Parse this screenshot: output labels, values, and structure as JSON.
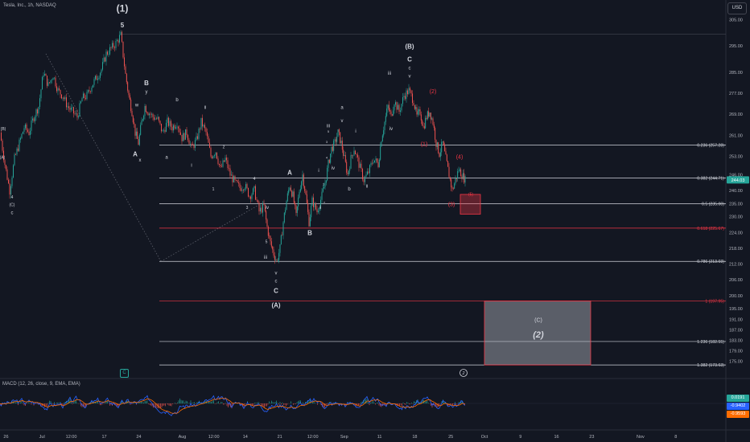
{
  "header": {
    "title": "Tesla, Inc., 1h, NASDAQ",
    "currency": "USD"
  },
  "macd": {
    "label": "MACD (12, 26, close, 9, EMA, EMA)",
    "values": [
      "0.0191",
      "-0.9402",
      "-0.9593"
    ]
  },
  "colors": {
    "background": "#131722",
    "up": "#26a69a",
    "down": "#ef5350",
    "fib_line": "#d1d4dc",
    "fib_red": "#f23645",
    "macd": "#2962ff",
    "signal": "#ff6d00",
    "box_fill": "#b2b5be"
  },
  "chart_data": {
    "type": "candlestick",
    "symbol": "Tesla, Inc., 1h, NASDAQ",
    "y_axis": {
      "range": [
        170,
        310
      ],
      "ticks": [
        305,
        295,
        285,
        277,
        269,
        261,
        253,
        246,
        240,
        235,
        230,
        224,
        218,
        212,
        206,
        200,
        195,
        191,
        187,
        183,
        179,
        175
      ]
    },
    "x_axis": {
      "ticks": [
        {
          "label": "26",
          "x_frac": 0.008
        },
        {
          "label": "Jul",
          "x_frac": 0.056
        },
        {
          "label": "12:00",
          "x_frac": 0.095
        },
        {
          "label": "17",
          "x_frac": 0.139
        },
        {
          "label": "24",
          "x_frac": 0.185
        },
        {
          "label": "Aug",
          "x_frac": 0.243
        },
        {
          "label": "12:00",
          "x_frac": 0.285
        },
        {
          "label": "14",
          "x_frac": 0.327
        },
        {
          "label": "21",
          "x_frac": 0.373
        },
        {
          "label": "12:00",
          "x_frac": 0.417
        },
        {
          "label": "Sep",
          "x_frac": 0.459
        },
        {
          "label": "11",
          "x_frac": 0.506
        },
        {
          "label": "18",
          "x_frac": 0.553
        },
        {
          "label": "25",
          "x_frac": 0.601
        },
        {
          "label": "Oct",
          "x_frac": 0.646
        },
        {
          "label": "9",
          "x_frac": 0.694
        },
        {
          "label": "16",
          "x_frac": 0.742
        },
        {
          "label": "23",
          "x_frac": 0.789
        },
        {
          "label": "Nov",
          "x_frac": 0.854
        },
        {
          "label": "8",
          "x_frac": 0.901
        }
      ]
    },
    "price_path": [
      [
        0,
        262
      ],
      [
        6,
        250
      ],
      [
        12,
        240
      ],
      [
        18,
        252
      ],
      [
        24,
        258
      ],
      [
        30,
        264
      ],
      [
        36,
        262
      ],
      [
        42,
        268
      ],
      [
        48,
        272
      ],
      [
        54,
        285
      ],
      [
        60,
        280
      ],
      [
        66,
        284
      ],
      [
        72,
        278
      ],
      [
        78,
        276
      ],
      [
        84,
        272
      ],
      [
        90,
        270
      ],
      [
        96,
        268
      ],
      [
        102,
        275
      ],
      [
        108,
        276
      ],
      [
        114,
        280
      ],
      [
        120,
        283
      ],
      [
        126,
        286
      ],
      [
        132,
        292
      ],
      [
        138,
        294
      ],
      [
        144,
        296
      ],
      [
        150,
        299
      ],
      [
        156,
        284
      ],
      [
        160,
        276
      ],
      [
        164,
        270
      ],
      [
        168,
        262
      ],
      [
        172,
        258
      ],
      [
        176,
        266
      ],
      [
        180,
        272
      ],
      [
        184,
        270
      ],
      [
        190,
        268
      ],
      [
        196,
        267
      ],
      [
        202,
        262
      ],
      [
        208,
        266
      ],
      [
        214,
        264
      ],
      [
        220,
        266
      ],
      [
        226,
        260
      ],
      [
        232,
        262
      ],
      [
        238,
        256
      ],
      [
        244,
        259
      ],
      [
        250,
        266
      ],
      [
        256,
        262
      ],
      [
        262,
        253
      ],
      [
        268,
        255
      ],
      [
        274,
        248
      ],
      [
        280,
        252
      ],
      [
        286,
        246
      ],
      [
        292,
        243
      ],
      [
        298,
        241
      ],
      [
        304,
        242
      ],
      [
        310,
        238
      ],
      [
        316,
        240
      ],
      [
        322,
        232
      ],
      [
        328,
        234
      ],
      [
        332,
        226
      ],
      [
        336,
        220
      ],
      [
        340,
        216
      ],
      [
        344,
        213
      ],
      [
        348,
        218
      ],
      [
        352,
        228
      ],
      [
        356,
        236
      ],
      [
        360,
        242
      ],
      [
        364,
        238
      ],
      [
        368,
        230
      ],
      [
        372,
        240
      ],
      [
        376,
        246
      ],
      [
        380,
        238
      ],
      [
        384,
        228
      ],
      [
        388,
        236
      ],
      [
        394,
        232
      ],
      [
        400,
        238
      ],
      [
        404,
        243
      ],
      [
        408,
        250
      ],
      [
        412,
        256
      ],
      [
        416,
        258
      ],
      [
        420,
        262
      ],
      [
        424,
        258
      ],
      [
        428,
        252
      ],
      [
        432,
        246
      ],
      [
        436,
        252
      ],
      [
        440,
        256
      ],
      [
        446,
        250
      ],
      [
        452,
        244
      ],
      [
        458,
        247
      ],
      [
        464,
        252
      ],
      [
        470,
        250
      ],
      [
        474,
        260
      ],
      [
        478,
        266
      ],
      [
        482,
        272
      ],
      [
        486,
        268
      ],
      [
        490,
        274
      ],
      [
        496,
        270
      ],
      [
        502,
        276
      ],
      [
        508,
        278
      ],
      [
        514,
        274
      ],
      [
        518,
        268
      ],
      [
        522,
        270
      ],
      [
        526,
        264
      ],
      [
        530,
        268
      ],
      [
        534,
        270
      ],
      [
        538,
        266
      ],
      [
        542,
        258
      ],
      [
        546,
        254
      ],
      [
        550,
        258
      ],
      [
        554,
        252
      ],
      [
        558,
        246
      ],
      [
        562,
        240
      ],
      [
        566,
        244
      ],
      [
        570,
        248
      ],
      [
        574,
        246
      ],
      [
        578,
        244
      ]
    ],
    "fib_levels": [
      {
        "label": "0.236 (257.28)",
        "value": 257.28,
        "color": "white"
      },
      {
        "label": "0.382 (244.71)",
        "value": 244.71,
        "color": "white"
      },
      {
        "label": "0.5 (235.00)",
        "value": 235.0,
        "color": "white"
      },
      {
        "label": "0.618 (225.67)",
        "value": 225.67,
        "color": "red"
      },
      {
        "label": "0.786 (213.03)",
        "value": 213.03,
        "color": "white"
      },
      {
        "label": "1 (197.95)",
        "value": 197.95,
        "color": "red"
      },
      {
        "label": "1.236 (182.55)",
        "value": 182.55,
        "color": "white"
      },
      {
        "label": "1.382 (173.63)",
        "value": 173.63,
        "color": "white"
      }
    ],
    "current_price": {
      "label": "244.03",
      "value": 244.03
    },
    "wave_labels": [
      {
        "text": "(1)",
        "x": 152,
        "y": 308,
        "color": "white",
        "size": 12
      },
      {
        "text": "5",
        "x": 152,
        "y": 302,
        "color": "white",
        "size": 8
      },
      {
        "text": "(B)",
        "x": 4,
        "y": 263,
        "color": "white",
        "size": 5
      },
      {
        "text": "(A)",
        "x": 3,
        "y": 252,
        "color": "white",
        "size": 5
      },
      {
        "text": "4",
        "x": 15,
        "y": 237,
        "color": "white",
        "size": 5
      },
      {
        "text": "(C)",
        "x": 15,
        "y": 234,
        "color": "white",
        "size": 5
      },
      {
        "text": "c",
        "x": 15,
        "y": 231,
        "color": "white",
        "size": 6
      },
      {
        "text": "B",
        "x": 182,
        "y": 280,
        "color": "white",
        "size": 8
      },
      {
        "text": "y",
        "x": 182,
        "y": 277,
        "color": "white",
        "size": 6
      },
      {
        "text": "w",
        "x": 170,
        "y": 272,
        "color": "white",
        "size": 6
      },
      {
        "text": "A",
        "x": 168,
        "y": 253,
        "color": "white",
        "size": 8
      },
      {
        "text": "x",
        "x": 174,
        "y": 251,
        "color": "white",
        "size": 6
      },
      {
        "text": "b",
        "x": 220,
        "y": 274,
        "color": "white",
        "size": 6
      },
      {
        "text": "a",
        "x": 207,
        "y": 252,
        "color": "white",
        "size": 6
      },
      {
        "text": "ii",
        "x": 255,
        "y": 271,
        "color": "white",
        "size": 6
      },
      {
        "text": "i",
        "x": 238,
        "y": 249,
        "color": "white",
        "size": 6
      },
      {
        "text": "2",
        "x": 278,
        "y": 256,
        "color": "white",
        "size": 5
      },
      {
        "text": "1",
        "x": 265,
        "y": 240,
        "color": "white",
        "size": 5
      },
      {
        "text": "4",
        "x": 316,
        "y": 244,
        "color": "white",
        "size": 5
      },
      {
        "text": "3",
        "x": 307,
        "y": 233,
        "color": "white",
        "size": 5
      },
      {
        "text": "iv",
        "x": 332,
        "y": 233,
        "color": "white",
        "size": 6
      },
      {
        "text": "5",
        "x": 331,
        "y": 220,
        "color": "white",
        "size": 5
      },
      {
        "text": "iii",
        "x": 330,
        "y": 214,
        "color": "white",
        "size": 6
      },
      {
        "text": "v",
        "x": 343,
        "y": 208,
        "color": "white",
        "size": 6
      },
      {
        "text": "c",
        "x": 343,
        "y": 205,
        "color": "white",
        "size": 6
      },
      {
        "text": "C",
        "x": 343,
        "y": 201,
        "color": "white",
        "size": 8
      },
      {
        "text": "(A)",
        "x": 343,
        "y": 195.5,
        "color": "white",
        "size": 8
      },
      {
        "text": "A",
        "x": 360,
        "y": 246,
        "color": "white",
        "size": 8
      },
      {
        "text": "B",
        "x": 385,
        "y": 223,
        "color": "white",
        "size": 8
      },
      {
        "text": "ii",
        "x": 398,
        "y": 233,
        "color": "white",
        "size": 6
      },
      {
        "text": "2",
        "x": 403,
        "y": 235,
        "color": "white",
        "size": 4
      },
      {
        "text": "1",
        "x": 402,
        "y": 242,
        "color": "white",
        "size": 4
      },
      {
        "text": "i",
        "x": 396,
        "y": 247,
        "color": "white",
        "size": 6
      },
      {
        "text": "4",
        "x": 406,
        "y": 252,
        "color": "white",
        "size": 4
      },
      {
        "text": "3",
        "x": 406,
        "y": 258,
        "color": "white",
        "size": 4
      },
      {
        "text": "5",
        "x": 408,
        "y": 262,
        "color": "white",
        "size": 4
      },
      {
        "text": "iii",
        "x": 408,
        "y": 264,
        "color": "white",
        "size": 6
      },
      {
        "text": "iv",
        "x": 414,
        "y": 248,
        "color": "white",
        "size": 6
      },
      {
        "text": "i",
        "x": 442,
        "y": 262,
        "color": "white",
        "size": 6
      },
      {
        "text": "v",
        "x": 425,
        "y": 266,
        "color": "white",
        "size": 6
      },
      {
        "text": "a",
        "x": 425,
        "y": 271,
        "color": "white",
        "size": 6
      },
      {
        "text": "b",
        "x": 434,
        "y": 240,
        "color": "white",
        "size": 6
      },
      {
        "text": "ii",
        "x": 456,
        "y": 241,
        "color": "white",
        "size": 6
      },
      {
        "text": "iii",
        "x": 484,
        "y": 284,
        "color": "white",
        "size": 6
      },
      {
        "text": "iv",
        "x": 486,
        "y": 263,
        "color": "white",
        "size": 6
      },
      {
        "text": "(B)",
        "x": 509,
        "y": 294,
        "color": "white",
        "size": 8
      },
      {
        "text": "C",
        "x": 509,
        "y": 289,
        "color": "white",
        "size": 8
      },
      {
        "text": "c",
        "x": 509,
        "y": 286,
        "color": "white",
        "size": 6
      },
      {
        "text": "v",
        "x": 509,
        "y": 283,
        "color": "white",
        "size": 6
      },
      {
        "text": "(2)",
        "x": 538,
        "y": 277,
        "color": "red",
        "size": 7
      },
      {
        "text": "(1)",
        "x": 527,
        "y": 257,
        "color": "red",
        "size": 7
      },
      {
        "text": "(4)",
        "x": 571,
        "y": 252,
        "color": "red",
        "size": 7
      },
      {
        "text": "(3)",
        "x": 561,
        "y": 234,
        "color": "red",
        "size": 7
      },
      {
        "text": "(5)",
        "x": 585,
        "y": 238,
        "color": "red",
        "size": 5
      },
      {
        "text": "(C)",
        "x": 669,
        "y": 190,
        "color": "white",
        "size": 7
      },
      {
        "text": "(2)",
        "x": 669,
        "y": 184,
        "color": "white",
        "size": 11
      }
    ],
    "target_zones": [
      {
        "x1": 572,
        "x2": 597,
        "y_top": 238.5,
        "y_bottom": 231,
        "color": "red"
      },
      {
        "x1": 602,
        "x2": 734,
        "y_top": 197.95,
        "y_bottom": 173.63,
        "color": "gray"
      }
    ]
  }
}
